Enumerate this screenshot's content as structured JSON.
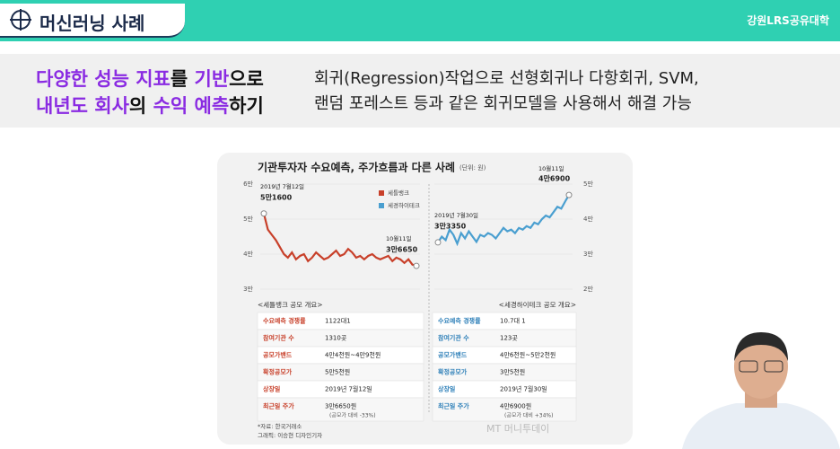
{
  "header": {
    "title": "머신러닝 사례",
    "logo": "강원LRS공유대학"
  },
  "headline": {
    "left": [
      [
        {
          "text": "다양한 성능 지표",
          "accent": true
        },
        {
          "text": "를 ",
          "accent": false
        },
        {
          "text": "기반",
          "accent": true
        },
        {
          "text": "으로",
          "accent": false
        }
      ],
      [
        {
          "text": "내년도 회사",
          "accent": true
        },
        {
          "text": "의 ",
          "accent": false
        },
        {
          "text": "수익 예측",
          "accent": true
        },
        {
          "text": "하기",
          "accent": false
        }
      ]
    ],
    "right": [
      "회귀(Regression)작업으로 선형회귀나 다항회귀, SVM,",
      "랜덤 포레스트 등과 같은 회귀모델을 사용해서 해결 가능"
    ]
  },
  "infographic": {
    "title": "기관투자자 수요예측, 주가흐름과 다른 사례",
    "unit": "(단위: 원)"
  },
  "chart_data": [
    {
      "type": "line",
      "series": [
        {
          "name": "세틀뱅크",
          "color": "#c8402a",
          "values": [
            51600,
            47000,
            45500,
            44000,
            42000,
            40000,
            39000,
            40500,
            38500,
            39500,
            40000,
            38000,
            39000,
            40500,
            39500,
            38500,
            39000,
            40000,
            41000,
            39500,
            40000,
            41500,
            40500,
            39000,
            39500,
            38500,
            39500,
            40000,
            39000,
            38500,
            39000,
            39500,
            38000,
            39000,
            38500,
            37500,
            38500,
            37000,
            36650
          ]
        }
      ],
      "ylim": [
        30000,
        60000
      ],
      "yticks": [
        {
          "value": 30000,
          "label": "3만"
        },
        {
          "value": 40000,
          "label": "4만"
        },
        {
          "value": 50000,
          "label": "5만"
        },
        {
          "value": 60000,
          "label": "6만"
        }
      ],
      "annotations": [
        "2019년 7월12일",
        "5만1600",
        "10월11일",
        "3만6650"
      ]
    },
    {
      "type": "line",
      "series": [
        {
          "name": "세경하이테크",
          "color": "#4a9fd0",
          "values": [
            33350,
            35000,
            34000,
            37000,
            35500,
            33000,
            36000,
            34500,
            36500,
            35000,
            33500,
            35500,
            35000,
            36000,
            35500,
            34500,
            36000,
            37500,
            36500,
            37000,
            36000,
            37500,
            37000,
            38000,
            37500,
            39000,
            38500,
            40000,
            41000,
            40500,
            42000,
            43500,
            43000,
            45000,
            46900
          ]
        }
      ],
      "ylim": [
        20000,
        50000
      ],
      "yticks": [
        {
          "value": 20000,
          "label": "2만"
        },
        {
          "value": 30000,
          "label": "3만"
        },
        {
          "value": 40000,
          "label": "4만"
        },
        {
          "value": 50000,
          "label": "5만"
        }
      ],
      "annotations": [
        "2019년 7월30일",
        "3만3350",
        "10월11일",
        "4만6900"
      ]
    }
  ],
  "tables": [
    {
      "title": "<세틀뱅크 공모 개요>",
      "rows": [
        [
          "수요예측 경쟁률",
          "1122대1"
        ],
        [
          "참여기관 수",
          "1310곳"
        ],
        [
          "공모가밴드",
          "4만4천원~4만9천원"
        ],
        [
          "확정공모가",
          "5만5천원"
        ],
        [
          "상장일",
          "2019년 7월12일"
        ],
        [
          "최근일 주가",
          "3만6650원",
          "(공모가 대비 -33%)"
        ]
      ]
    },
    {
      "title": "<세경하이테크 공모 개요>",
      "rows": [
        [
          "수요예측 경쟁률",
          "10.7대 1"
        ],
        [
          "참여기관 수",
          "123곳"
        ],
        [
          "공모가밴드",
          "4만6천원~5만2천원"
        ],
        [
          "확정공모가",
          "3만5천원"
        ],
        [
          "상장일",
          "2019년 7월30일"
        ],
        [
          "최근일 주가",
          "4만6900원",
          "(공모가 대비 +34%)"
        ]
      ]
    }
  ],
  "footnotes": [
    "*자료: 한국거래소",
    "그래픽: 이승현 디자인기자"
  ],
  "watermark": "MT 머니투데이"
}
